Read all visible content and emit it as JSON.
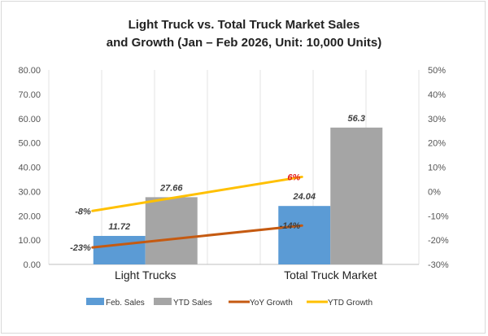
{
  "chart_data": {
    "type": "bar",
    "title_line1": "Light Truck vs. Total Truck Market Sales",
    "title_line2": "and Growth (Jan – Feb 2026, Unit: 10,000 Units)",
    "categories": [
      "Light Trucks",
      "Total Truck Market"
    ],
    "series": [
      {
        "name": "Feb. Sales",
        "kind": "bar",
        "axis": "left",
        "color": "#5b9bd5",
        "values": [
          11.72,
          24.04
        ],
        "labels": [
          "11.72",
          "24.04"
        ]
      },
      {
        "name": "YTD Sales",
        "kind": "bar",
        "axis": "left",
        "color": "#a5a5a5",
        "values": [
          27.66,
          56.3
        ],
        "labels": [
          "27.66",
          "56.3"
        ]
      },
      {
        "name": "YoY Growth",
        "kind": "line",
        "axis": "right",
        "color": "#c55a11",
        "values": [
          -23,
          -14
        ],
        "labels": [
          "-23%",
          "-14%"
        ]
      },
      {
        "name": "YTD Growth",
        "kind": "line",
        "axis": "right",
        "color": "#ffc000",
        "values": [
          -8,
          6
        ],
        "labels": [
          "-8%",
          "6%"
        ],
        "highlight_label_color": "#e31a1c"
      }
    ],
    "y_left": {
      "min": 0,
      "max": 80,
      "ticks": [
        "0.00",
        "10.00",
        "20.00",
        "30.00",
        "40.00",
        "50.00",
        "60.00",
        "70.00",
        "80.00"
      ]
    },
    "y_right": {
      "min": -30,
      "max": 50,
      "ticks": [
        "-30%",
        "-20%",
        "-10%",
        "0%",
        "10%",
        "20%",
        "30%",
        "40%",
        "50%"
      ]
    },
    "grid": "vertical",
    "legend_position": "bottom"
  }
}
